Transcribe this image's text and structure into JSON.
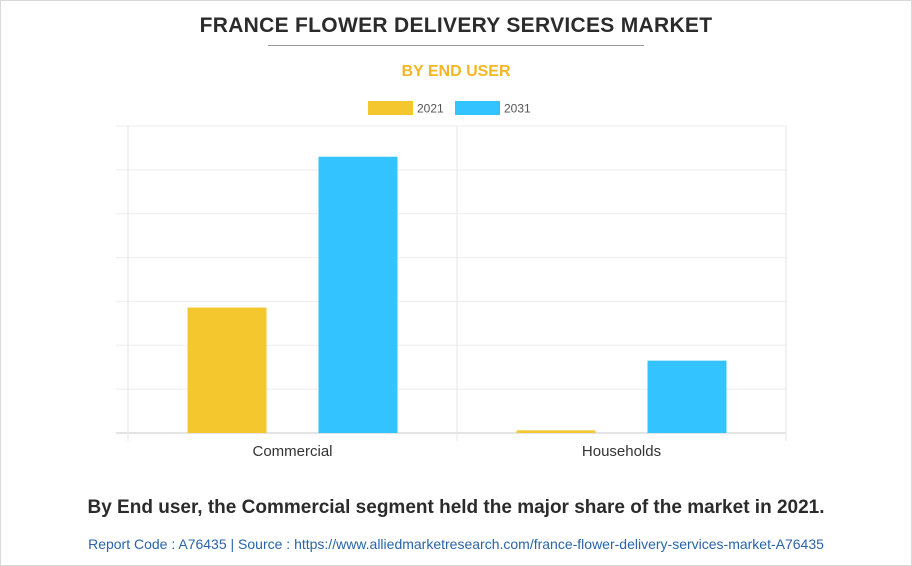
{
  "header": {
    "title": "FRANCE FLOWER DELIVERY SERVICES MARKET",
    "subtitle": "BY END USER"
  },
  "colors": {
    "series_2021": "#f4c72e",
    "series_2031": "#33c4ff",
    "subtitle": "#f5b623",
    "footer": "#2a64a8"
  },
  "chart_data": {
    "type": "bar",
    "categories": [
      "Commercial",
      "Households"
    ],
    "series": [
      {
        "name": "2021",
        "values": [
          28.6,
          0.6
        ]
      },
      {
        "name": "2031",
        "values": [
          63,
          16.5
        ]
      }
    ],
    "ylim": [
      0,
      70
    ],
    "grid": true,
    "legend": "top-center",
    "xlabel": "",
    "ylabel": ""
  },
  "caption": "By End user, the Commercial segment held the major share of the market in 2021.",
  "footer": {
    "text": "Report Code : A76435  |  Source : https://www.alliedmarketresearch.com/france-flower-delivery-services-market-A76435"
  }
}
